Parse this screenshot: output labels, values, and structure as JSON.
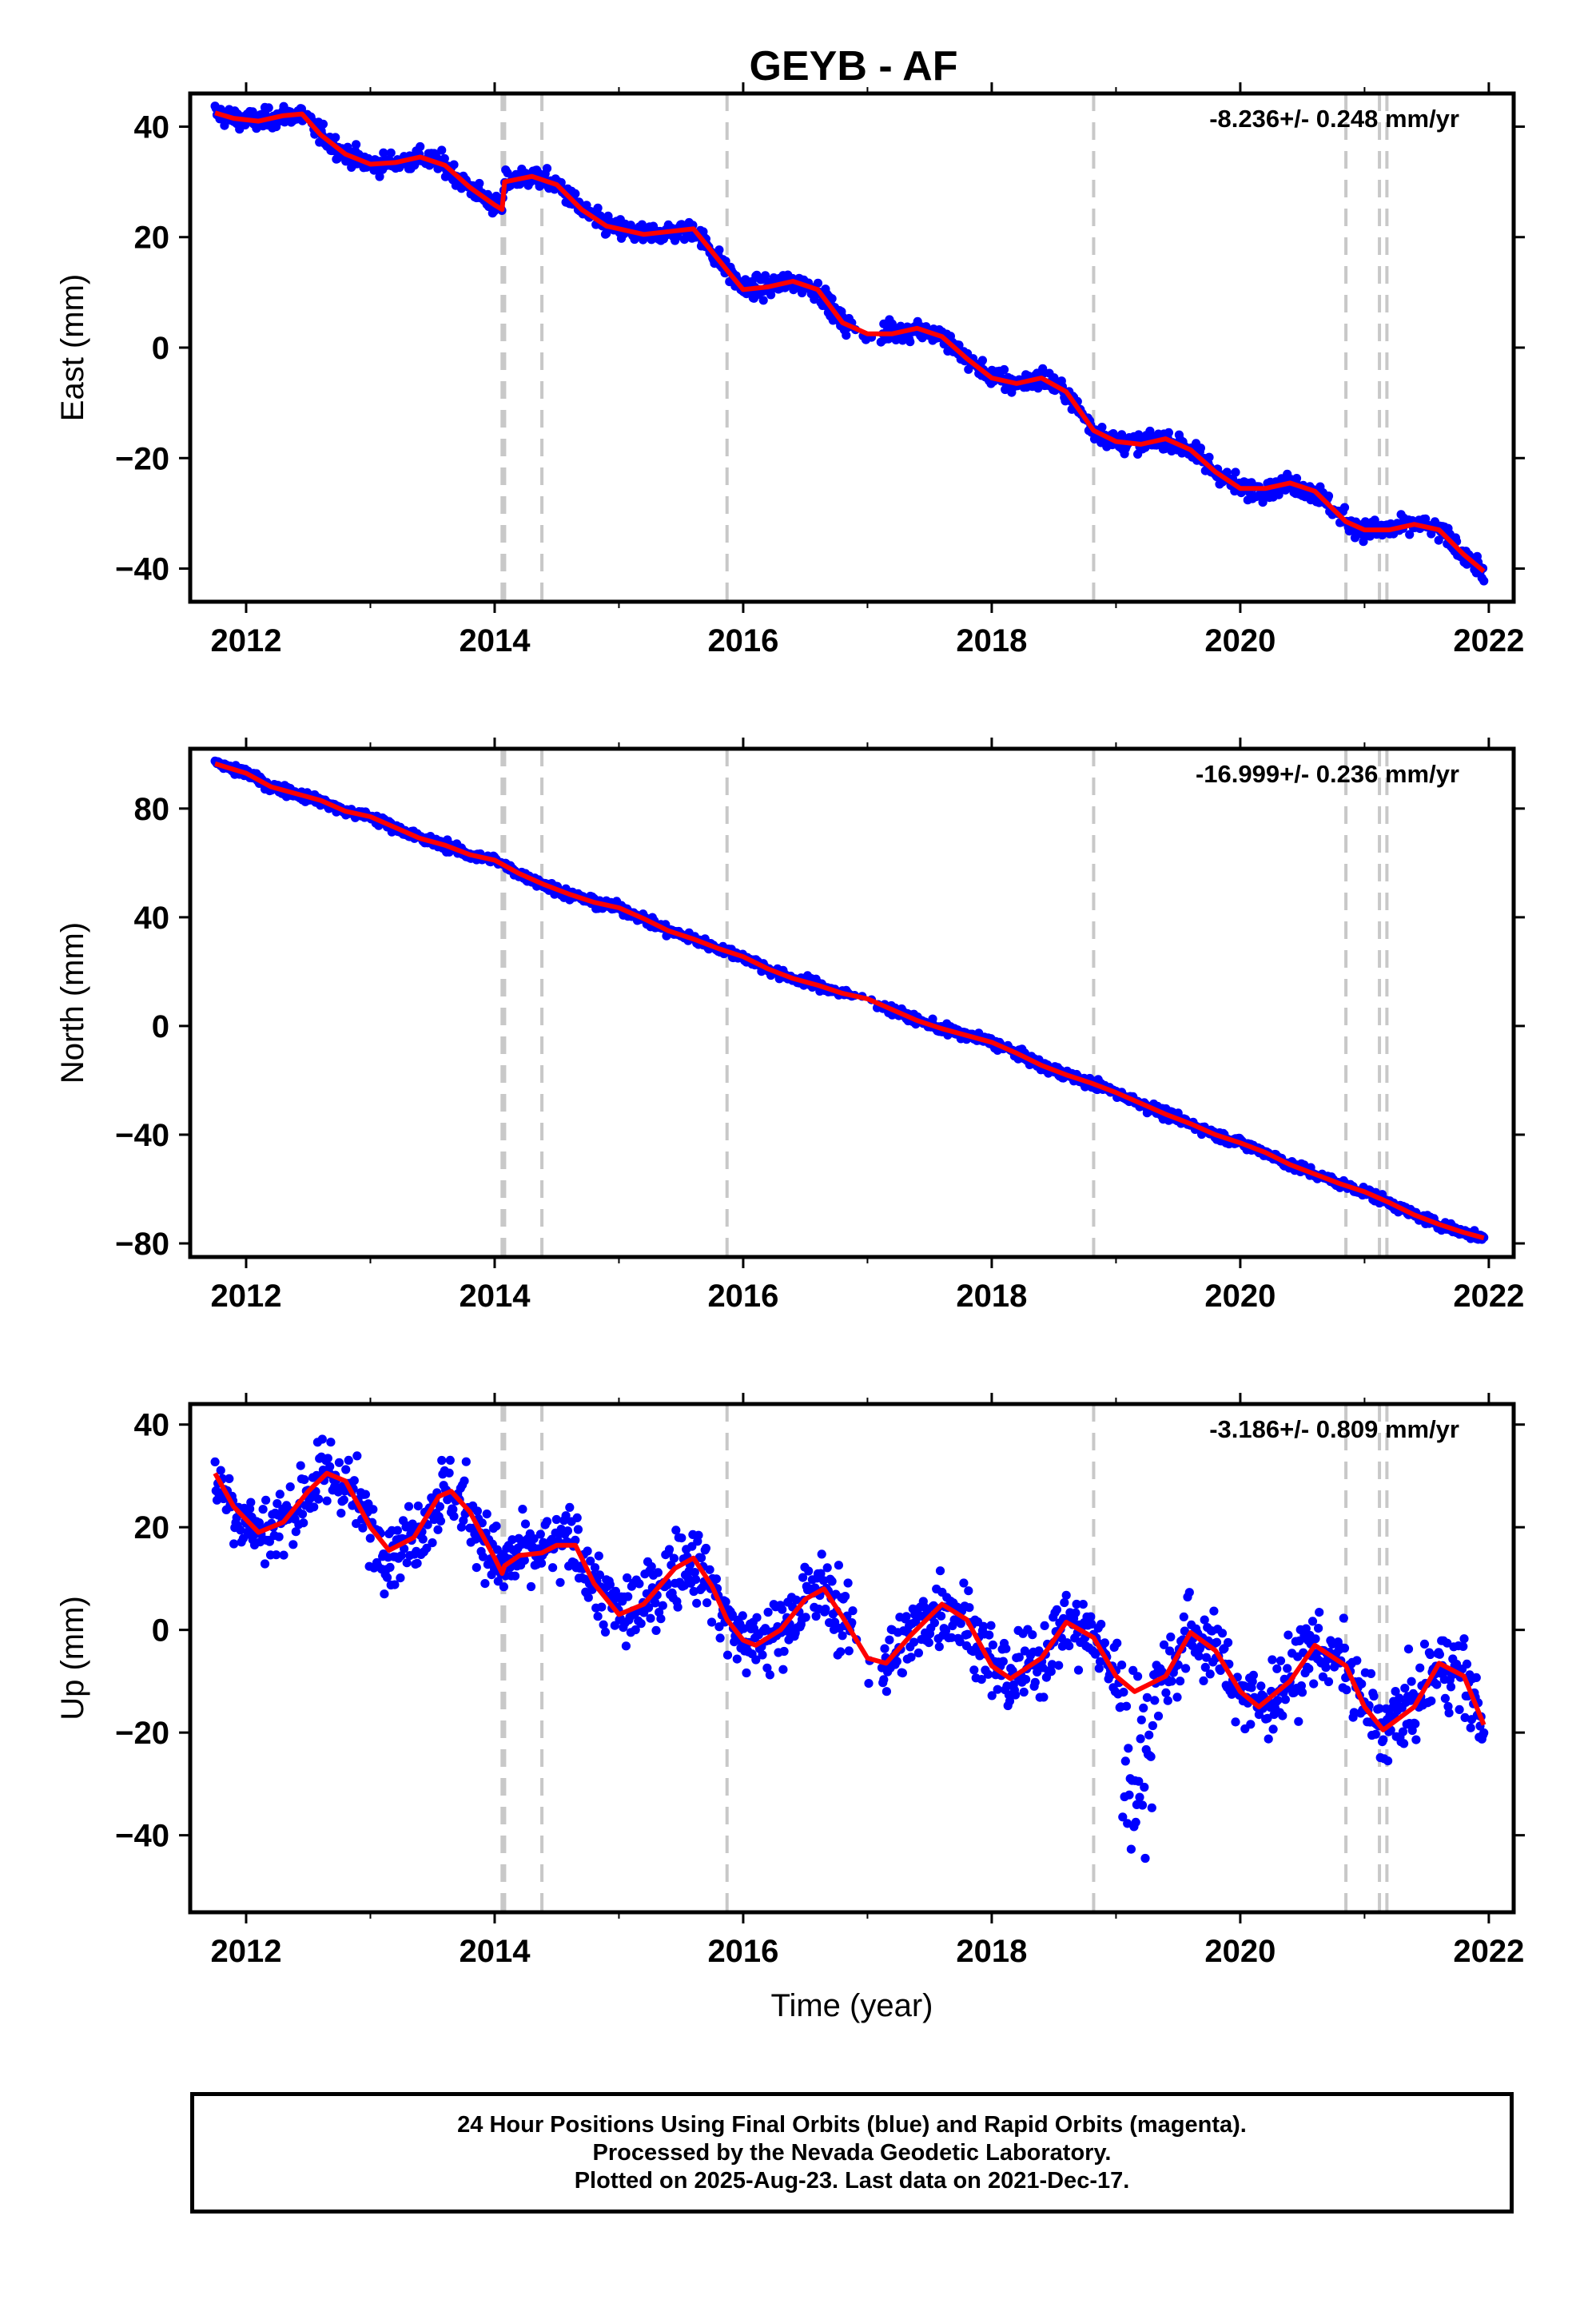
{
  "chart_data": [
    {
      "type": "scatter",
      "panel": "east",
      "title": "GEYB - AF",
      "xlabel": "",
      "ylabel": "East (mm)",
      "rate_annotation": "-8.236+/- 0.248 mm/yr",
      "xlim": [
        2011.55,
        2022.2
      ],
      "ylim": [
        -46,
        46
      ],
      "xticks": [
        2012,
        2014,
        2016,
        2018,
        2020,
        2022
      ],
      "yticks": [
        -40,
        -20,
        0,
        20,
        40
      ],
      "grid": false,
      "series_colors": {
        "observed": "#0000ff",
        "model": "#ff0000",
        "events": "#c8c8c8"
      },
      "event_lines": [
        2014.06,
        2014.08,
        2014.38,
        2015.87,
        2018.82,
        2020.85,
        2021.12,
        2021.18
      ],
      "model": {
        "x": [
          2011.75,
          2011.9,
          2012.1,
          2012.3,
          2012.45,
          2012.6,
          2012.8,
          2013.0,
          2013.2,
          2013.4,
          2013.6,
          2013.8,
          2014.0,
          2014.06,
          2014.08,
          2014.3,
          2014.5,
          2014.7,
          2014.9,
          2015.2,
          2015.4,
          2015.6,
          2015.87,
          2016.0,
          2016.2,
          2016.4,
          2016.6,
          2016.8,
          2017.0,
          2017.2,
          2017.4,
          2017.6,
          2017.8,
          2018.0,
          2018.2,
          2018.4,
          2018.6,
          2018.82,
          2019.0,
          2019.2,
          2019.4,
          2019.6,
          2019.8,
          2020.0,
          2020.2,
          2020.4,
          2020.6,
          2020.85,
          2021.0,
          2021.2,
          2021.4,
          2021.6,
          2021.8,
          2021.96
        ],
        "y": [
          42.5,
          41.5,
          41.0,
          42.0,
          42.3,
          38.5,
          35.0,
          33.2,
          33.5,
          34.5,
          33.0,
          29.0,
          25.8,
          25.0,
          30.0,
          31.0,
          29.5,
          25.0,
          22.0,
          20.5,
          21.0,
          21.5,
          14.0,
          10.5,
          11.0,
          12.0,
          10.5,
          4.5,
          2.5,
          2.5,
          3.5,
          2.0,
          -2.0,
          -5.5,
          -6.5,
          -5.5,
          -8.0,
          -15.0,
          -17.0,
          -17.5,
          -16.5,
          -18.5,
          -22.5,
          -25.5,
          -25.5,
          -24.5,
          -26.0,
          -31.5,
          -33.0,
          -33.0,
          -32.0,
          -33.0,
          -37.5,
          -40.5
        ]
      }
    },
    {
      "type": "scatter",
      "panel": "north",
      "title": "",
      "xlabel": "",
      "ylabel": "North (mm)",
      "rate_annotation": "-16.999+/- 0.236 mm/yr",
      "xlim": [
        2011.55,
        2022.2
      ],
      "ylim": [
        -85,
        102
      ],
      "xticks": [
        2012,
        2014,
        2016,
        2018,
        2020,
        2022
      ],
      "yticks": [
        -80,
        -40,
        0,
        40,
        80
      ],
      "grid": false,
      "series_colors": {
        "observed": "#0000ff",
        "model": "#ff0000",
        "events": "#c8c8c8"
      },
      "event_lines": [
        2014.06,
        2014.08,
        2014.38,
        2015.87,
        2018.82,
        2020.85,
        2021.12,
        2021.18
      ],
      "model": {
        "x": [
          2011.75,
          2012.0,
          2012.2,
          2012.4,
          2012.6,
          2012.8,
          2013.0,
          2013.2,
          2013.4,
          2013.6,
          2013.8,
          2014.0,
          2014.2,
          2014.4,
          2014.6,
          2014.8,
          2015.0,
          2015.2,
          2015.4,
          2015.6,
          2015.8,
          2016.0,
          2016.2,
          2016.4,
          2016.6,
          2016.8,
          2017.0,
          2017.2,
          2017.4,
          2017.6,
          2017.8,
          2018.0,
          2018.2,
          2018.4,
          2018.6,
          2018.8,
          2019.0,
          2019.2,
          2019.4,
          2019.6,
          2019.8,
          2020.0,
          2020.2,
          2020.4,
          2020.6,
          2020.8,
          2021.0,
          2021.2,
          2021.4,
          2021.6,
          2021.8,
          2021.96
        ],
        "y": [
          96.5,
          93.0,
          88.0,
          85.5,
          83.0,
          79.0,
          77.0,
          73.0,
          69.0,
          66.5,
          63.0,
          61.0,
          56.0,
          52.0,
          48.5,
          45.5,
          43.5,
          39.5,
          35.0,
          32.0,
          28.5,
          25.5,
          21.0,
          17.5,
          15.0,
          12.0,
          10.0,
          6.0,
          2.0,
          -1.0,
          -3.5,
          -6.0,
          -10.0,
          -14.5,
          -18.0,
          -21.0,
          -24.5,
          -28.5,
          -32.5,
          -36.0,
          -40.0,
          -43.0,
          -46.5,
          -51.0,
          -54.5,
          -58.0,
          -61.0,
          -65.0,
          -69.5,
          -73.0,
          -76.0,
          -78.0
        ]
      }
    },
    {
      "type": "scatter",
      "panel": "up",
      "title": "",
      "xlabel": "Time (year)",
      "ylabel": "Up (mm)",
      "rate_annotation": "-3.186+/- 0.809 mm/yr",
      "xlim": [
        2011.55,
        2022.2
      ],
      "ylim": [
        -55,
        44
      ],
      "xticks": [
        2012,
        2014,
        2016,
        2018,
        2020,
        2022
      ],
      "yticks": [
        -40,
        -20,
        0,
        20,
        40
      ],
      "grid": false,
      "series_colors": {
        "observed": "#0000ff",
        "model": "#ff0000",
        "events": "#c8c8c8"
      },
      "event_lines": [
        2014.06,
        2014.08,
        2014.38,
        2015.87,
        2018.82,
        2020.85,
        2021.12,
        2021.18
      ],
      "model": {
        "x": [
          2011.75,
          2011.9,
          2012.1,
          2012.3,
          2012.5,
          2012.65,
          2012.8,
          2013.0,
          2013.15,
          2013.35,
          2013.55,
          2013.65,
          2013.8,
          2014.0,
          2014.06,
          2014.08,
          2014.2,
          2014.38,
          2014.5,
          2014.65,
          2014.8,
          2015.0,
          2015.2,
          2015.45,
          2015.6,
          2015.75,
          2015.87,
          2016.0,
          2016.1,
          2016.3,
          2016.5,
          2016.65,
          2016.8,
          2017.0,
          2017.15,
          2017.35,
          2017.6,
          2017.8,
          2018.0,
          2018.15,
          2018.4,
          2018.6,
          2018.82,
          2019.0,
          2019.15,
          2019.4,
          2019.6,
          2019.8,
          2020.0,
          2020.15,
          2020.4,
          2020.6,
          2020.85,
          2021.0,
          2021.15,
          2021.4,
          2021.6,
          2021.8,
          2021.96
        ],
        "y": [
          30.5,
          24.0,
          19.0,
          21.0,
          27.0,
          30.5,
          29.0,
          20.0,
          15.5,
          18.0,
          26.0,
          27.0,
          23.0,
          14.0,
          11.0,
          12.5,
          14.5,
          15.0,
          16.5,
          16.5,
          9.0,
          3.0,
          5.0,
          12.0,
          14.0,
          8.5,
          2.0,
          -2.0,
          -3.0,
          0.0,
          6.0,
          8.0,
          2.5,
          -5.5,
          -6.5,
          -1.0,
          5.0,
          2.0,
          -7.0,
          -9.5,
          -5.5,
          1.5,
          -1.5,
          -9.0,
          -12.0,
          -9.0,
          -0.5,
          -4.0,
          -12.0,
          -15.0,
          -10.0,
          -3.0,
          -7.0,
          -15.0,
          -19.5,
          -15.0,
          -6.5,
          -9.0,
          -18.5
        ]
      }
    }
  ],
  "caption": {
    "line1": "24 Hour Positions Using Final Orbits (blue) and Rapid Orbits (magenta).",
    "line2": "Processed by the Nevada Geodetic Laboratory.",
    "line3": "Plotted on 2025-Aug-23. Last data on 2021-Dec-17."
  }
}
